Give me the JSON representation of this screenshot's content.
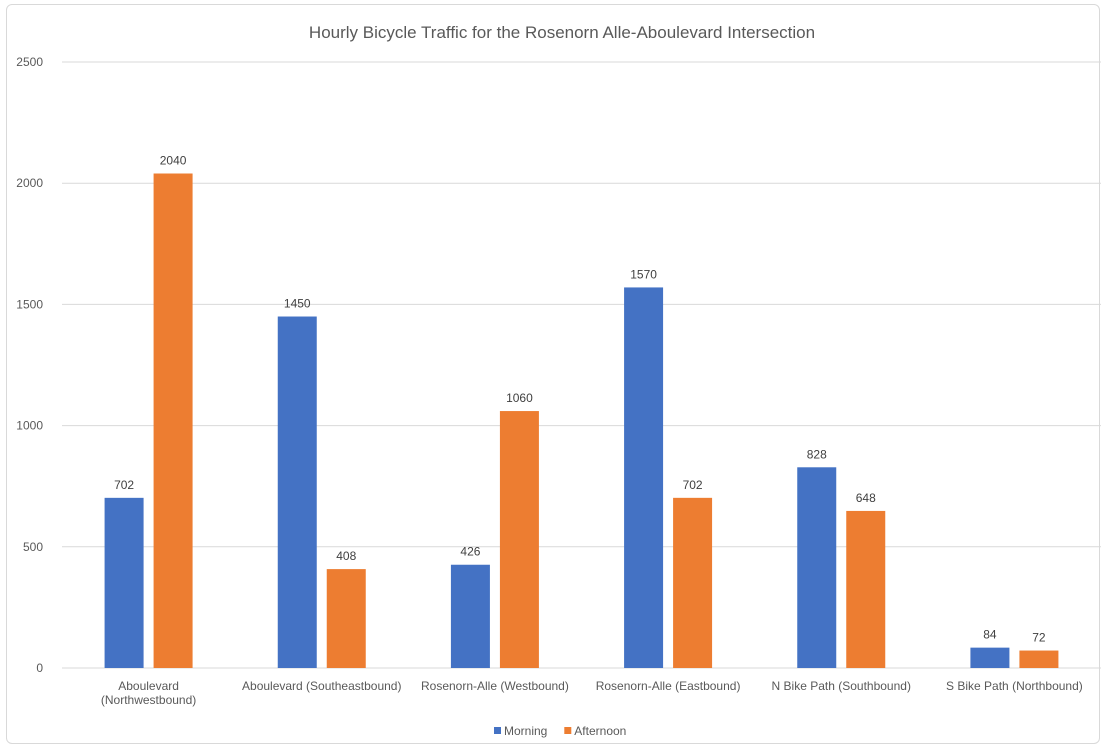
{
  "chart_data": {
    "type": "bar",
    "title": "Hourly Bicycle Traffic for the Rosenorn Alle-Aboulevard Intersection",
    "categories": [
      [
        "Aboulevard",
        "(Northwestbound)"
      ],
      [
        "Aboulevard (Southeastbound)"
      ],
      [
        "Rosenorn-Alle (Westbound)"
      ],
      [
        "Rosenorn-Alle (Eastbound)"
      ],
      [
        "N Bike Path (Southbound)"
      ],
      [
        "S Bike Path (Northbound)"
      ]
    ],
    "series": [
      {
        "name": "Morning",
        "color": "#4472C4",
        "values": [
          702,
          1450,
          426,
          1570,
          828,
          84
        ]
      },
      {
        "name": "Afternoon",
        "color": "#ED7D31",
        "values": [
          2040,
          408,
          1060,
          702,
          648,
          72
        ]
      }
    ],
    "ylim": [
      0,
      2500
    ],
    "yticks": [
      0,
      500,
      1000,
      1500,
      2000,
      2500
    ],
    "grid": true,
    "legend": "bottom",
    "xlabel": "",
    "ylabel": ""
  }
}
